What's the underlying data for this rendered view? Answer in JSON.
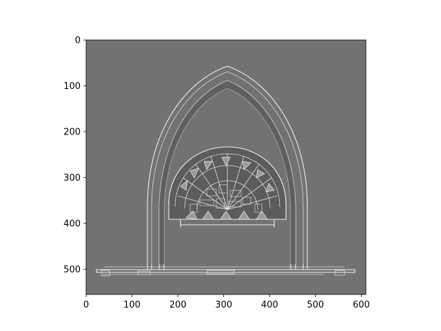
{
  "chart_data": {
    "type": "heatmap",
    "title": "",
    "xlabel": "",
    "ylabel": "",
    "xlim": [
      0,
      610
    ],
    "ylim": [
      555,
      0
    ],
    "x_ticks": [
      0,
      100,
      200,
      300,
      400,
      500,
      600
    ],
    "y_ticks": [
      0,
      100,
      200,
      300,
      400,
      500
    ],
    "x_tick_labels": [
      "0",
      "100",
      "200",
      "300",
      "400",
      "500",
      "600"
    ],
    "y_tick_labels": [
      "0",
      "100",
      "200",
      "300",
      "400",
      "500"
    ],
    "colormap": "gray",
    "background_level": 0.45,
    "image_content": "edge-detected image of an arched window with a rose ornament",
    "colors": {
      "background": "#727272",
      "dark_fill": "#5a5a5a",
      "edge": "#f2f2f2",
      "frame": "#000000"
    }
  }
}
